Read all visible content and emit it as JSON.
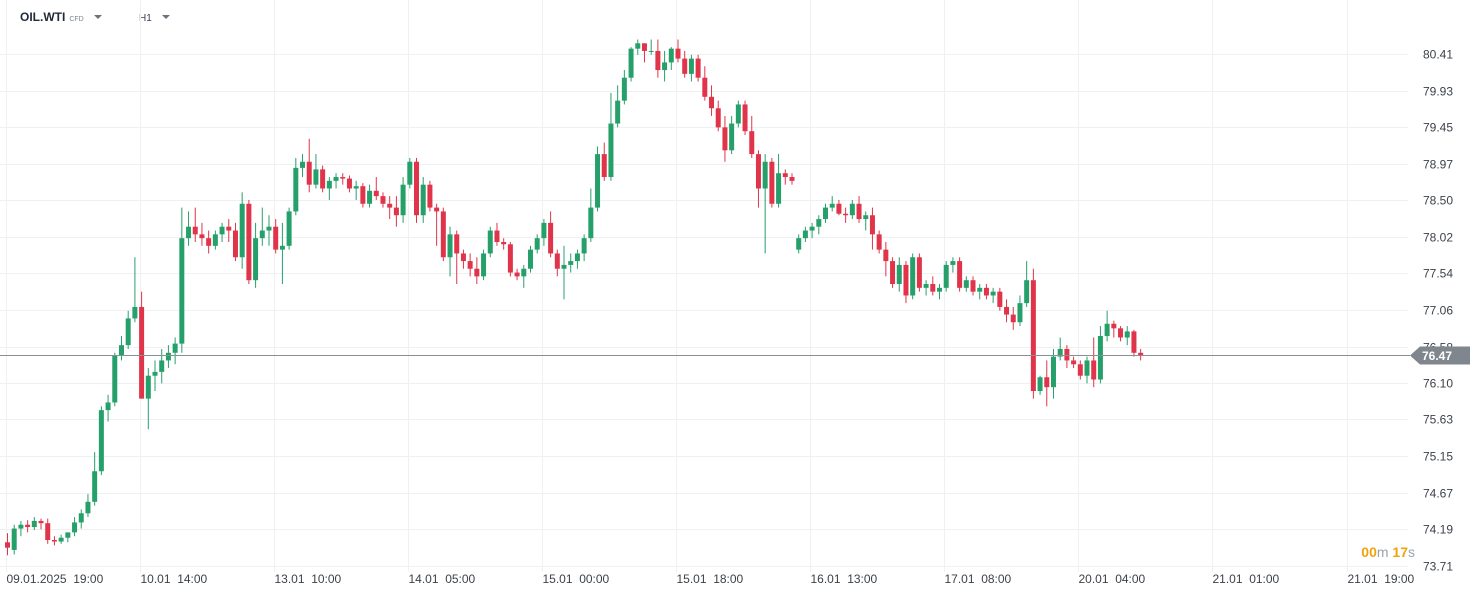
{
  "header": {
    "symbol": "OIL.WTI",
    "instrument_type": "CFD",
    "timeframe": "H1"
  },
  "timer": {
    "minutes": "00",
    "minutes_unit": "m",
    "seconds": "17",
    "seconds_unit": "s"
  },
  "colors": {
    "up": "#26a06b",
    "down": "#e0344a",
    "grid": "#eef0f2",
    "price_line": "#8a8f96",
    "price_tag": "#80868d",
    "timer": "#f0a30a"
  },
  "chart_data": {
    "type": "candlestick",
    "title": "OIL.WTI",
    "interval": "H1",
    "ylim": [
      73.62,
      81.02
    ],
    "y_ticks": [
      "80.41",
      "79.93",
      "79.45",
      "78.97",
      "78.50",
      "78.02",
      "77.54",
      "77.06",
      "76.58",
      "76.10",
      "75.63",
      "75.15",
      "74.67",
      "74.19",
      "73.71"
    ],
    "x_ticks": [
      "09.01.2025  19:00",
      "10.01  14:00",
      "13.01  10:00",
      "14.01  05:00",
      "15.01  00:00",
      "15.01  18:00",
      "16.01  13:00",
      "17.01  08:00",
      "20.01  04:00",
      "21.01  01:00",
      "21.01  19:00"
    ],
    "x_tick_index": [
      0,
      20,
      40,
      60,
      80,
      100,
      120,
      140,
      160,
      180,
      200
    ],
    "current_price": "76.47",
    "candles": [
      [
        74.02,
        74.14,
        73.85,
        73.95
      ],
      [
        73.92,
        74.25,
        73.86,
        74.2
      ],
      [
        74.2,
        74.3,
        74.1,
        74.25
      ],
      [
        74.25,
        74.31,
        74.15,
        74.22
      ],
      [
        74.22,
        74.35,
        74.18,
        74.3
      ],
      [
        74.3,
        74.33,
        74.19,
        74.27
      ],
      [
        74.27,
        74.33,
        74.0,
        74.05
      ],
      [
        74.05,
        74.1,
        73.98,
        74.03
      ],
      [
        74.03,
        74.12,
        74.0,
        74.08
      ],
      [
        74.08,
        74.15,
        74.02,
        74.15
      ],
      [
        74.15,
        74.35,
        74.1,
        74.28
      ],
      [
        74.28,
        74.45,
        74.2,
        74.4
      ],
      [
        74.4,
        74.65,
        74.35,
        74.55
      ],
      [
        74.55,
        75.2,
        74.5,
        74.95
      ],
      [
        74.95,
        75.8,
        74.9,
        75.75
      ],
      [
        75.75,
        75.95,
        75.6,
        75.85
      ],
      [
        75.85,
        76.5,
        75.8,
        76.47
      ],
      [
        76.47,
        76.72,
        76.4,
        76.6
      ],
      [
        76.6,
        77.05,
        76.55,
        76.95
      ],
      [
        76.95,
        77.75,
        76.9,
        77.1
      ],
      [
        77.1,
        77.3,
        75.9,
        75.9
      ],
      [
        75.9,
        76.3,
        75.5,
        76.2
      ],
      [
        76.2,
        76.4,
        76.0,
        76.25
      ],
      [
        76.25,
        76.55,
        76.1,
        76.4
      ],
      [
        76.4,
        76.6,
        76.3,
        76.5
      ],
      [
        76.5,
        76.7,
        76.35,
        76.62
      ],
      [
        76.62,
        78.4,
        76.5,
        78.0
      ],
      [
        78.0,
        78.35,
        77.9,
        78.15
      ],
      [
        78.15,
        78.4,
        77.95,
        78.05
      ],
      [
        78.05,
        78.2,
        77.9,
        78.0
      ],
      [
        78.0,
        78.1,
        77.8,
        77.9
      ],
      [
        77.9,
        78.1,
        77.85,
        78.05
      ],
      [
        78.05,
        78.2,
        77.95,
        78.15
      ],
      [
        78.15,
        78.25,
        77.95,
        78.1
      ],
      [
        78.1,
        78.2,
        77.7,
        77.75
      ],
      [
        77.75,
        78.6,
        77.6,
        78.45
      ],
      [
        78.45,
        78.5,
        77.4,
        77.45
      ],
      [
        77.45,
        78.2,
        77.35,
        78.0
      ],
      [
        78.0,
        78.4,
        77.9,
        78.1
      ],
      [
        78.1,
        78.3,
        77.9,
        78.15
      ],
      [
        78.15,
        78.25,
        77.8,
        77.85
      ],
      [
        77.85,
        78.2,
        77.4,
        77.9
      ],
      [
        77.9,
        78.4,
        77.85,
        78.35
      ],
      [
        78.35,
        79.05,
        78.3,
        78.92
      ],
      [
        78.92,
        79.1,
        78.8,
        79.0
      ],
      [
        79.0,
        79.3,
        78.6,
        78.7
      ],
      [
        78.7,
        79.1,
        78.65,
        78.9
      ],
      [
        78.9,
        78.95,
        78.6,
        78.65
      ],
      [
        78.65,
        78.8,
        78.5,
        78.75
      ],
      [
        78.75,
        78.85,
        78.65,
        78.8
      ],
      [
        78.8,
        78.85,
        78.7,
        78.78
      ],
      [
        78.78,
        78.82,
        78.6,
        78.65
      ],
      [
        78.65,
        78.75,
        78.5,
        78.68
      ],
      [
        78.68,
        78.72,
        78.4,
        78.45
      ],
      [
        78.45,
        78.7,
        78.4,
        78.62
      ],
      [
        78.62,
        78.8,
        78.5,
        78.55
      ],
      [
        78.55,
        78.6,
        78.4,
        78.45
      ],
      [
        78.45,
        78.55,
        78.25,
        78.4
      ],
      [
        78.4,
        78.55,
        78.15,
        78.3
      ],
      [
        78.3,
        78.8,
        78.2,
        78.7
      ],
      [
        78.7,
        79.05,
        78.65,
        79.0
      ],
      [
        79.0,
        79.05,
        78.2,
        78.3
      ],
      [
        78.3,
        78.8,
        78.2,
        78.7
      ],
      [
        78.7,
        78.75,
        78.35,
        78.4
      ],
      [
        78.4,
        78.45,
        77.9,
        78.35
      ],
      [
        78.35,
        78.4,
        77.7,
        77.75
      ],
      [
        77.75,
        78.15,
        77.5,
        78.05
      ],
      [
        78.05,
        78.1,
        77.4,
        77.8
      ],
      [
        77.8,
        77.85,
        77.6,
        77.7
      ],
      [
        77.7,
        77.8,
        77.5,
        77.6
      ],
      [
        77.6,
        77.75,
        77.4,
        77.5
      ],
      [
        77.5,
        77.85,
        77.45,
        77.8
      ],
      [
        77.8,
        78.15,
        77.75,
        78.1
      ],
      [
        78.1,
        78.2,
        77.9,
        77.95
      ],
      [
        77.95,
        78.0,
        77.85,
        77.92
      ],
      [
        77.92,
        77.95,
        77.5,
        77.55
      ],
      [
        77.55,
        77.6,
        77.45,
        77.5
      ],
      [
        77.5,
        77.65,
        77.35,
        77.6
      ],
      [
        77.6,
        77.9,
        77.55,
        77.85
      ],
      [
        77.85,
        78.05,
        77.8,
        78.0
      ],
      [
        78.0,
        78.25,
        77.9,
        78.2
      ],
      [
        78.2,
        78.35,
        77.75,
        77.8
      ],
      [
        77.8,
        77.85,
        77.5,
        77.6
      ],
      [
        77.6,
        77.9,
        77.2,
        77.65
      ],
      [
        77.65,
        77.8,
        77.55,
        77.7
      ],
      [
        77.7,
        77.85,
        77.6,
        77.8
      ],
      [
        77.8,
        78.05,
        77.7,
        78.0
      ],
      [
        78.0,
        78.65,
        77.95,
        78.4
      ],
      [
        78.4,
        79.2,
        78.35,
        79.1
      ],
      [
        79.1,
        79.25,
        78.75,
        78.8
      ],
      [
        78.8,
        79.9,
        78.75,
        79.5
      ],
      [
        79.5,
        80.0,
        79.45,
        79.8
      ],
      [
        79.8,
        80.2,
        79.75,
        80.1
      ],
      [
        80.1,
        80.5,
        80.05,
        80.48
      ],
      [
        80.48,
        80.6,
        80.4,
        80.55
      ],
      [
        80.55,
        80.55,
        80.3,
        80.45
      ],
      [
        80.45,
        80.6,
        80.4,
        80.45
      ],
      [
        80.45,
        80.6,
        80.1,
        80.2
      ],
      [
        80.2,
        80.45,
        80.05,
        80.3
      ],
      [
        80.3,
        80.5,
        80.2,
        80.48
      ],
      [
        80.48,
        80.6,
        80.3,
        80.35
      ],
      [
        80.35,
        80.45,
        80.1,
        80.15
      ],
      [
        80.15,
        80.4,
        80.05,
        80.35
      ],
      [
        80.35,
        80.4,
        80.05,
        80.1
      ],
      [
        80.1,
        80.25,
        79.8,
        79.85
      ],
      [
        79.85,
        80.0,
        79.6,
        79.7
      ],
      [
        79.7,
        79.8,
        79.4,
        79.45
      ],
      [
        79.45,
        79.6,
        79.0,
        79.15
      ],
      [
        79.15,
        79.6,
        79.1,
        79.5
      ],
      [
        79.5,
        79.8,
        79.45,
        79.75
      ],
      [
        79.75,
        79.8,
        79.35,
        79.4
      ],
      [
        79.4,
        79.6,
        79.05,
        79.1
      ],
      [
        79.1,
        79.15,
        78.4,
        78.65
      ],
      [
        78.65,
        79.1,
        77.8,
        79.0
      ],
      [
        79.0,
        79.05,
        78.4,
        78.45
      ],
      [
        78.45,
        79.1,
        78.4,
        78.85
      ],
      [
        78.85,
        78.9,
        78.7,
        78.8
      ],
      [
        78.8,
        78.85,
        78.7,
        78.75
      ],
      [
        77.85,
        78.05,
        77.8,
        78.0
      ],
      [
        78.0,
        78.15,
        77.95,
        78.1
      ],
      [
        78.1,
        78.2,
        78.0,
        78.15
      ],
      [
        78.15,
        78.3,
        78.05,
        78.25
      ],
      [
        78.25,
        78.45,
        78.2,
        78.4
      ],
      [
        78.4,
        78.55,
        78.35,
        78.45
      ],
      [
        78.45,
        78.5,
        78.3,
        78.32
      ],
      [
        78.32,
        78.4,
        78.2,
        78.3
      ],
      [
        78.3,
        78.5,
        78.25,
        78.45
      ],
      [
        78.45,
        78.55,
        78.2,
        78.25
      ],
      [
        78.25,
        78.35,
        78.1,
        78.3
      ],
      [
        78.3,
        78.4,
        77.85,
        78.05
      ],
      [
        78.05,
        78.1,
        77.8,
        77.85
      ],
      [
        77.85,
        77.95,
        77.5,
        77.7
      ],
      [
        77.7,
        77.75,
        77.35,
        77.4
      ],
      [
        77.4,
        77.75,
        77.3,
        77.65
      ],
      [
        77.65,
        77.7,
        77.15,
        77.25
      ],
      [
        77.25,
        77.8,
        77.2,
        77.75
      ],
      [
        77.75,
        77.8,
        77.3,
        77.35
      ],
      [
        77.35,
        77.45,
        77.25,
        77.4
      ],
      [
        77.4,
        77.5,
        77.25,
        77.3
      ],
      [
        77.3,
        77.4,
        77.2,
        77.35
      ],
      [
        77.35,
        77.7,
        77.3,
        77.65
      ],
      [
        77.65,
        77.75,
        77.55,
        77.7
      ],
      [
        77.7,
        77.75,
        77.3,
        77.35
      ],
      [
        77.35,
        77.5,
        77.3,
        77.45
      ],
      [
        77.45,
        77.5,
        77.25,
        77.3
      ],
      [
        77.3,
        77.4,
        77.2,
        77.35
      ],
      [
        77.35,
        77.4,
        77.2,
        77.25
      ],
      [
        77.25,
        77.35,
        77.15,
        77.3
      ],
      [
        77.3,
        77.35,
        77.05,
        77.1
      ],
      [
        77.1,
        77.2,
        76.9,
        77.0
      ],
      [
        77.0,
        77.1,
        76.8,
        76.9
      ],
      [
        76.9,
        77.25,
        76.85,
        77.15
      ],
      [
        77.15,
        77.7,
        77.1,
        77.45
      ],
      [
        77.45,
        77.6,
        75.9,
        76.0
      ],
      [
        76.0,
        76.2,
        75.95,
        76.18
      ],
      [
        76.18,
        76.4,
        75.8,
        76.05
      ],
      [
        76.05,
        76.55,
        75.9,
        76.45
      ],
      [
        76.45,
        76.7,
        76.4,
        76.55
      ],
      [
        76.55,
        76.6,
        76.3,
        76.4
      ],
      [
        76.4,
        76.45,
        76.3,
        76.35
      ],
      [
        76.35,
        76.4,
        76.15,
        76.2
      ],
      [
        76.2,
        76.45,
        76.1,
        76.4
      ],
      [
        76.4,
        76.7,
        76.05,
        76.15
      ],
      [
        76.15,
        76.85,
        76.1,
        76.72
      ],
      [
        76.72,
        77.05,
        76.65,
        76.88
      ],
      [
        76.88,
        76.92,
        76.7,
        76.82
      ],
      [
        76.82,
        76.85,
        76.65,
        76.7
      ],
      [
        76.7,
        76.85,
        76.6,
        76.78
      ],
      [
        76.78,
        76.8,
        76.45,
        76.5
      ],
      [
        76.5,
        76.55,
        76.4,
        76.47
      ]
    ]
  }
}
